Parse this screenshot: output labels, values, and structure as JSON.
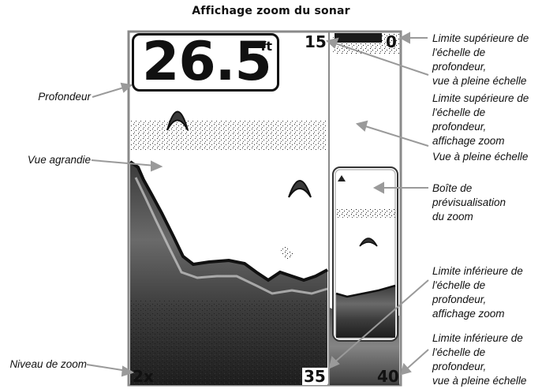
{
  "title": "Affichage zoom du sonar",
  "readouts": {
    "depth_value": "26.5",
    "depth_unit": "ft",
    "zoom_level": "2x",
    "zoom_top": "15",
    "zoom_bottom": "35",
    "full_top": "0",
    "full_bottom": "40"
  },
  "labels": {
    "profondeur": "Profondeur",
    "vue_agrandie": "Vue agrandie",
    "niveau_zoom": "Niveau de zoom",
    "limite_sup_pleine": [
      "Limite supérieure de",
      "l'échelle de profondeur,",
      "vue à pleine échelle"
    ],
    "limite_sup_zoom": [
      "Limite supérieure de",
      "l'échelle de profondeur,",
      "affichage zoom"
    ],
    "vue_pleine": "Vue à pleine échelle",
    "boite_preview": [
      "Boîte de",
      "prévisualisation",
      "du zoom"
    ],
    "limite_inf_zoom": [
      "Limite inférieure de",
      "l'échelle de profondeur,",
      "affichage zoom"
    ],
    "limite_inf_pleine": [
      "Limite inférieure de",
      "l'échelle de profondeur,",
      "vue à pleine échelle"
    ]
  },
  "colors": {
    "frame": "#8a8a8a",
    "arrow": "#9a9a9a",
    "text": "#111111"
  }
}
